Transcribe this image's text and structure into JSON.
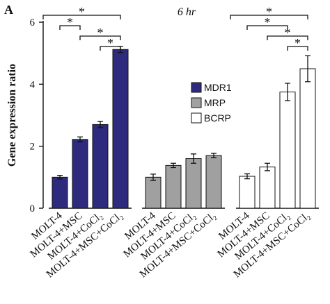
{
  "chart_data": {
    "type": "bar",
    "panel": "A",
    "title": "6 hr",
    "ylabel": "Gene expression ratio",
    "categories": [
      "MOLT-4",
      "MOLT-4+MSC",
      "MOLT-4+CoCl₂",
      "MOLT-4+MSC+CoCl₂"
    ],
    "ylim": [
      0,
      6
    ],
    "yticks": [
      0,
      2,
      4,
      6
    ],
    "series": [
      {
        "name": "MDR1",
        "color": "#2e2a7e",
        "values": [
          1.0,
          2.22,
          2.7,
          5.12
        ],
        "errors": [
          0.06,
          0.08,
          0.1,
          0.1
        ],
        "brackets": [
          {
            "from": 0,
            "to": 3,
            "label": "*"
          },
          {
            "from": 0,
            "to": 1,
            "label": "*"
          },
          {
            "from": 1,
            "to": 3,
            "label": "*"
          },
          {
            "from": 2,
            "to": 3,
            "label": "*"
          }
        ]
      },
      {
        "name": "MRP",
        "color": "#a0a0a0",
        "values": [
          1.0,
          1.38,
          1.6,
          1.7
        ],
        "errors": [
          0.1,
          0.07,
          0.15,
          0.07
        ],
        "brackets": []
      },
      {
        "name": "BCRP",
        "color": "#ffffff",
        "values": [
          1.03,
          1.33,
          3.75,
          4.5
        ],
        "errors": [
          0.08,
          0.12,
          0.28,
          0.42
        ],
        "brackets": [
          {
            "from": 0,
            "to": 3,
            "label": "*"
          },
          {
            "from": 0,
            "to": 2,
            "label": "*"
          },
          {
            "from": 1,
            "to": 3,
            "label": "*"
          },
          {
            "from": 2,
            "to": 3,
            "label": "*"
          }
        ]
      }
    ]
  }
}
